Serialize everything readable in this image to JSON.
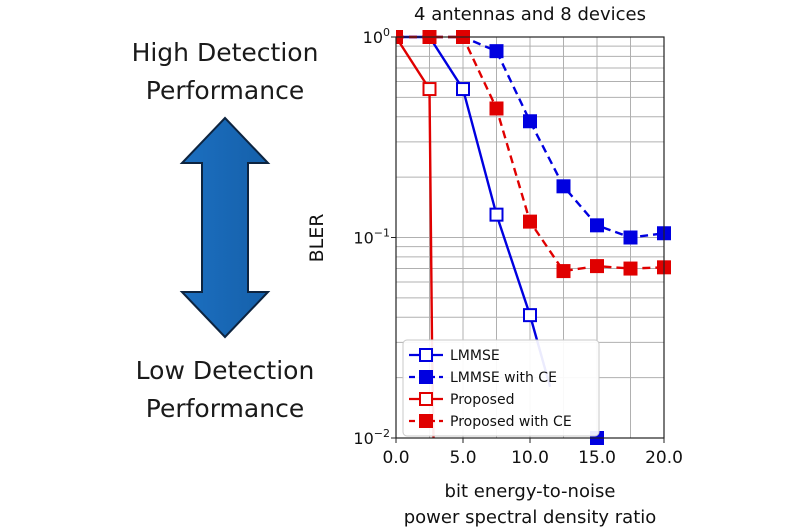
{
  "side": {
    "high_line1": "High Detection",
    "high_line2": "Performance",
    "low_line1": "Low Detection",
    "low_line2": "Performance"
  },
  "chart_data": {
    "type": "line",
    "title": "4 antennas and 8 devices",
    "xlabel_line1": "bit energy-to-noise",
    "xlabel_line2": "power spectral density ratio",
    "ylabel": "BLER",
    "xlim": [
      0,
      20
    ],
    "ylim": [
      0.01,
      1
    ],
    "yscale": "log",
    "grid": true,
    "legend": "bottom-left",
    "xticks": [
      "0.0",
      "5.0",
      "10.0",
      "15.0",
      "20.0"
    ],
    "yticks": [
      {
        "base": "10",
        "exp": "0",
        "value": 1
      },
      {
        "base": "10",
        "exp": "−1",
        "value": 0.1
      },
      {
        "base": "10",
        "exp": "−2",
        "value": 0.01
      }
    ],
    "series": [
      {
        "name": "LMMSE",
        "color": "#0000e0",
        "dash": false,
        "filled": false,
        "points": [
          [
            0,
            1
          ],
          [
            2.5,
            1
          ],
          [
            5,
            0.55
          ],
          [
            7.5,
            0.13
          ],
          [
            10,
            0.041
          ],
          [
            11.5,
            0.018
          ]
        ]
      },
      {
        "name": "LMMSE with CE",
        "color": "#0000e0",
        "dash": true,
        "filled": true,
        "points": [
          [
            0,
            1
          ],
          [
            2.5,
            1
          ],
          [
            5,
            1
          ],
          [
            7.5,
            0.85
          ],
          [
            10,
            0.38
          ],
          [
            12.5,
            0.18
          ],
          [
            15,
            0.115
          ],
          [
            17.5,
            0.1
          ],
          [
            20,
            0.105
          ]
        ]
      },
      {
        "name": "Proposed",
        "color": "#e00000",
        "dash": false,
        "filled": false,
        "points": [
          [
            0,
            1
          ],
          [
            2.5,
            0.55
          ],
          [
            2.7,
            0.025
          ],
          [
            2.8,
            0.01
          ]
        ]
      },
      {
        "name": "Proposed with CE",
        "color": "#e00000",
        "dash": true,
        "filled": true,
        "points": [
          [
            0,
            1
          ],
          [
            2.5,
            1
          ],
          [
            5,
            1
          ],
          [
            7.5,
            0.44
          ],
          [
            10,
            0.12
          ],
          [
            12.5,
            0.068
          ],
          [
            15,
            0.072
          ],
          [
            17.5,
            0.07
          ],
          [
            20,
            0.071
          ]
        ]
      }
    ],
    "extra_markers": [
      {
        "series": "LMMSE with CE",
        "x": 15,
        "y": 0.01
      }
    ]
  }
}
